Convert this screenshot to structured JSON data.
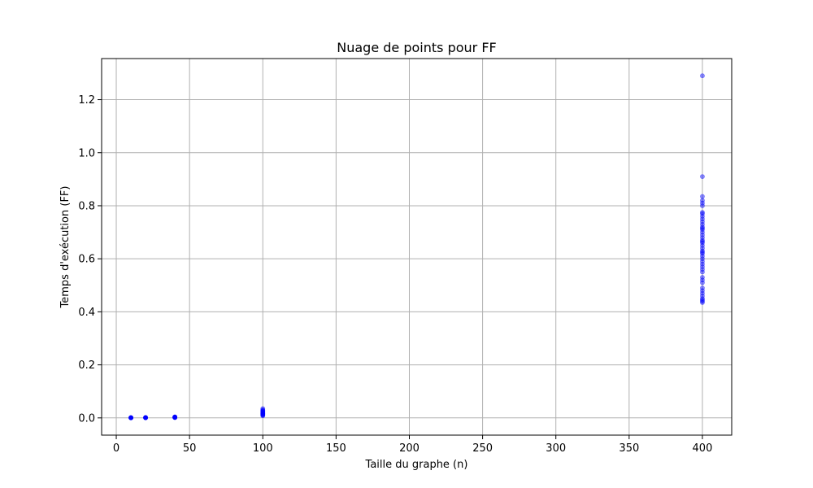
{
  "chart_data": {
    "type": "scatter",
    "title": "Nuage de points pour FF",
    "xlabel": "Taille du graphe (n)",
    "ylabel": "Temps d'exécution (FF)",
    "xlim": [
      -10,
      420
    ],
    "ylim": [
      -0.065,
      1.355
    ],
    "xticks": [
      0,
      50,
      100,
      150,
      200,
      250,
      300,
      350,
      400
    ],
    "yticks": [
      0.0,
      0.2,
      0.4,
      0.6,
      0.8,
      1.0,
      1.2
    ],
    "xtick_labels": [
      "0",
      "50",
      "100",
      "150",
      "200",
      "250",
      "300",
      "350",
      "400"
    ],
    "ytick_labels": [
      "0.0",
      "0.2",
      "0.4",
      "0.6",
      "0.8",
      "1.0",
      "1.2"
    ],
    "grid": true,
    "marker_color": "#0000ff",
    "marker_alpha": 0.45,
    "series": [
      {
        "x": [
          10,
          10,
          10,
          10,
          10,
          10,
          10,
          10,
          20,
          20,
          20,
          20,
          20,
          20,
          20,
          20,
          40,
          40,
          40,
          40,
          40,
          40,
          40,
          40,
          40,
          40,
          100,
          100,
          100,
          100,
          100,
          100,
          100,
          100,
          100,
          100,
          100,
          100,
          100,
          100,
          400,
          400,
          400,
          400,
          400,
          400,
          400,
          400,
          400,
          400,
          400,
          400,
          400,
          400,
          400,
          400,
          400,
          400,
          400,
          400,
          400,
          400,
          400,
          400,
          400,
          400,
          400,
          400,
          400,
          400,
          400,
          400,
          400,
          400,
          400,
          400,
          400,
          400,
          400,
          400,
          400,
          400,
          400,
          400
        ],
        "y": [
          0.0002,
          0.0004,
          0.0006,
          0.0008,
          0.001,
          0.0012,
          0.0005,
          0.0003,
          0.0005,
          0.0008,
          0.001,
          0.0012,
          0.0015,
          0.0007,
          0.0009,
          0.0011,
          0.001,
          0.0015,
          0.002,
          0.0025,
          0.003,
          0.004,
          0.0035,
          0.0018,
          0.0022,
          0.0028,
          0.008,
          0.01,
          0.012,
          0.014,
          0.015,
          0.016,
          0.018,
          0.02,
          0.022,
          0.024,
          0.026,
          0.028,
          0.03,
          0.035,
          1.29,
          0.91,
          0.835,
          0.82,
          0.81,
          0.8,
          0.775,
          0.77,
          0.76,
          0.75,
          0.74,
          0.73,
          0.72,
          0.715,
          0.71,
          0.7,
          0.69,
          0.68,
          0.67,
          0.665,
          0.66,
          0.65,
          0.64,
          0.63,
          0.625,
          0.62,
          0.61,
          0.6,
          0.59,
          0.58,
          0.57,
          0.56,
          0.55,
          0.53,
          0.52,
          0.51,
          0.49,
          0.48,
          0.47,
          0.46,
          0.45,
          0.445,
          0.44,
          0.435
        ]
      }
    ]
  }
}
